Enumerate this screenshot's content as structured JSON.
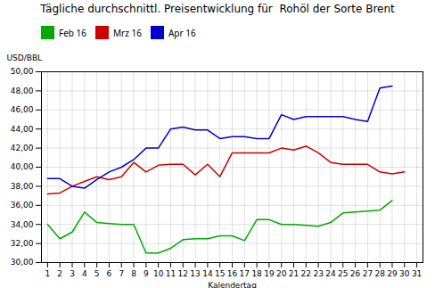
{
  "chart_data": {
    "type": "line",
    "title": "Tägliche durchschnittl. Preisentwicklung für  Rohöl der Sorte Brent",
    "xlabel": "Kalendertag",
    "ylabel": "USD/BBL",
    "x": [
      1,
      2,
      3,
      4,
      5,
      6,
      7,
      8,
      9,
      10,
      11,
      12,
      13,
      14,
      15,
      16,
      17,
      18,
      19,
      20,
      21,
      22,
      23,
      24,
      25,
      26,
      27,
      28,
      29,
      30,
      31
    ],
    "series": [
      {
        "name": "Feb 16",
        "color": "#00AA00",
        "values": [
          34.0,
          32.5,
          33.2,
          35.3,
          34.2,
          34.1,
          34.0,
          34.0,
          31.0,
          31.0,
          31.5,
          32.4,
          32.5,
          32.5,
          32.8,
          32.8,
          32.3,
          34.5,
          34.5,
          34.0,
          34.0,
          33.9,
          33.8,
          34.2,
          35.2,
          35.3,
          35.4,
          35.5,
          36.5,
          null,
          null
        ]
      },
      {
        "name": "Mrz 16",
        "color": "#CC0000",
        "values": [
          37.2,
          37.3,
          38.0,
          38.5,
          39.0,
          38.7,
          39.0,
          40.5,
          39.5,
          40.2,
          40.3,
          40.3,
          39.2,
          40.3,
          39.0,
          41.5,
          41.5,
          41.5,
          41.5,
          42.0,
          41.8,
          42.2,
          41.5,
          40.5,
          40.3,
          40.3,
          40.3,
          39.5,
          39.3,
          39.5,
          null
        ]
      },
      {
        "name": "Apr 16",
        "color": "#0000CC",
        "values": [
          38.8,
          38.8,
          38.0,
          37.8,
          38.7,
          39.5,
          40.0,
          40.8,
          42.0,
          42.0,
          44.0,
          44.2,
          43.9,
          43.9,
          43.0,
          43.2,
          43.2,
          43.0,
          43.0,
          45.5,
          45.0,
          45.3,
          45.3,
          45.3,
          45.3,
          45.0,
          44.8,
          48.3,
          48.5,
          null,
          null
        ]
      }
    ],
    "xlim": [
      0.5,
      31.5
    ],
    "xticks": [
      1,
      2,
      3,
      4,
      5,
      6,
      7,
      8,
      9,
      10,
      11,
      12,
      13,
      14,
      15,
      16,
      17,
      18,
      19,
      20,
      21,
      22,
      23,
      24,
      25,
      26,
      27,
      28,
      29,
      30,
      31
    ],
    "ylim": [
      30.0,
      50.0
    ],
    "yticks": [
      {
        "value": 30.0,
        "label": "30,00"
      },
      {
        "value": 32.0,
        "label": "32,00"
      },
      {
        "value": 34.0,
        "label": "34,00"
      },
      {
        "value": 36.0,
        "label": "36,00"
      },
      {
        "value": 38.0,
        "label": "38,00"
      },
      {
        "value": 40.0,
        "label": "40,00"
      },
      {
        "value": 42.0,
        "label": "42,00"
      },
      {
        "value": 44.0,
        "label": "44,00"
      },
      {
        "value": 46.0,
        "label": "46,00"
      },
      {
        "value": 48.0,
        "label": "48,00"
      },
      {
        "value": 50.0,
        "label": "50,00"
      }
    ],
    "grid": true,
    "legend": "upper left"
  }
}
